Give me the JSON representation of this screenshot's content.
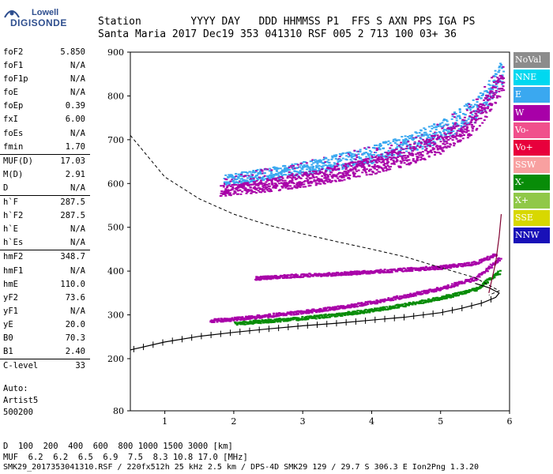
{
  "logo": {
    "line1": "Lowell",
    "line2": "DIGISONDE"
  },
  "header": {
    "labels": "Station        YYYY DAY   DDD HHMMSS P1  FFS S AXN PPS IGA PS",
    "values": "Santa Maria 2017 Dec19 353 041310 RSF 005 2 713 100 03+ 36"
  },
  "params": [
    {
      "name": "foF2",
      "value": "5.850"
    },
    {
      "name": "foF1",
      "value": "N/A"
    },
    {
      "name": "foF1p",
      "value": "N/A"
    },
    {
      "name": "foE",
      "value": "N/A"
    },
    {
      "name": "foEp",
      "value": "0.39"
    },
    {
      "name": "fxI",
      "value": "6.00"
    },
    {
      "name": "foEs",
      "value": "N/A"
    },
    {
      "name": "fmin",
      "value": "1.70"
    },
    {
      "name": "MUF(D)",
      "value": "17.03",
      "sep": true
    },
    {
      "name": "M(D)",
      "value": "2.91"
    },
    {
      "name": "D",
      "value": "N/A"
    },
    {
      "name": "h`F",
      "value": "287.5",
      "sep": true
    },
    {
      "name": "h`F2",
      "value": "287.5"
    },
    {
      "name": "h`E",
      "value": "N/A"
    },
    {
      "name": "h`Es",
      "value": "N/A"
    },
    {
      "name": "hmF2",
      "value": "348.7",
      "sep": true
    },
    {
      "name": "hmF1",
      "value": "N/A"
    },
    {
      "name": "hmE",
      "value": "110.0"
    },
    {
      "name": "yF2",
      "value": "73.6"
    },
    {
      "name": "yF1",
      "value": "N/A"
    },
    {
      "name": "yE",
      "value": "20.0"
    },
    {
      "name": "B0",
      "value": "70.3"
    },
    {
      "name": "B1",
      "value": "2.40"
    },
    {
      "name": "C-level",
      "value": "33",
      "sep": true
    }
  ],
  "auto": {
    "line1": "Auto:",
    "line2": "Artist5",
    "line3": "500200"
  },
  "muf_table": {
    "d_label": "D",
    "d_values": "  100  200  400  600  800 1000 1500 3000 [km]",
    "muf_label": "MUF",
    "muf_values": "  6.2  6.2  6.5  6.9  7.5  8.3 10.8 17.0 [MHz]"
  },
  "footer": "SMK29_2017353041310.RSF / 220fx512h 25 kHz 2.5 km / DPS-4D SMK29 129 / 29.7 S 306.3 E Ion2Png 1.3.20",
  "legend": [
    {
      "label": "NoVal",
      "color": "#8c8c8c"
    },
    {
      "label": "NNE",
      "color": "#00d8f0"
    },
    {
      "label": "E",
      "color": "#3aa8f0"
    },
    {
      "label": "W",
      "color": "#a800a8"
    },
    {
      "label": "Vo-",
      "color": "#f0508c"
    },
    {
      "label": "Vo+",
      "color": "#e8003c"
    },
    {
      "label": "SSW",
      "color": "#f8a0a0"
    },
    {
      "label": "X-",
      "color": "#088c08"
    },
    {
      "label": "X+",
      "color": "#90c848"
    },
    {
      "label": "SSE",
      "color": "#d8d800"
    },
    {
      "label": "NNW",
      "color": "#1810b8"
    }
  ],
  "chart_data": {
    "type": "scatter",
    "xlim": [
      0.5,
      6.0
    ],
    "ylim": [
      80,
      900
    ],
    "x_ticks": [
      1,
      2,
      3,
      4,
      5,
      6
    ],
    "y_ticks": [
      80,
      200,
      300,
      400,
      500,
      600,
      700,
      800,
      900
    ],
    "grid": false,
    "series": [
      {
        "name": "O-trace lower (F2)",
        "color": "#a800a8",
        "x": [
          1.65,
          2.0,
          2.5,
          3.0,
          3.5,
          4.0,
          4.5,
          5.0,
          5.5,
          5.85
        ],
        "y": [
          288,
          292,
          300,
          308,
          318,
          330,
          345,
          362,
          385,
          430
        ]
      },
      {
        "name": "O-trace upper",
        "color": "#a800a8",
        "x": [
          2.3,
          2.6,
          3.0,
          3.5,
          4.0,
          4.5,
          5.0,
          5.5,
          5.8
        ],
        "y": [
          385,
          388,
          392,
          395,
          400,
          405,
          410,
          420,
          440
        ]
      },
      {
        "name": "X-trace",
        "color": "#088c08",
        "x": [
          2.0,
          2.5,
          3.0,
          3.5,
          4.0,
          4.5,
          5.0,
          5.5,
          5.85
        ],
        "y": [
          282,
          288,
          294,
          302,
          312,
          325,
          340,
          360,
          400
        ]
      },
      {
        "name": "Multihop E",
        "color": "#3aa8f0",
        "x": [
          1.85,
          2.2,
          2.6,
          3.0,
          3.5,
          4.0,
          4.5,
          5.0,
          5.5,
          5.9
        ],
        "y": [
          610,
          617,
          625,
          635,
          650,
          668,
          690,
          720,
          770,
          860
        ]
      },
      {
        "name": "Multihop W",
        "color": "#a800a8",
        "x": [
          1.8,
          2.2,
          2.6,
          3.0,
          3.5,
          4.0,
          4.5,
          5.0,
          5.5,
          5.9
        ],
        "y": [
          585,
          592,
          600,
          610,
          625,
          642,
          665,
          695,
          745,
          840
        ]
      }
    ],
    "profile": {
      "x": [
        0.5,
        1.0,
        1.5,
        2.0,
        2.5,
        3.0,
        3.5,
        4.0,
        4.5,
        5.0,
        5.3,
        5.6,
        5.8,
        5.85,
        5.7,
        5.5
      ],
      "y": [
        220,
        238,
        251,
        260,
        268,
        275,
        281,
        288,
        295,
        305,
        315,
        327,
        340,
        350,
        362,
        372
      ]
    },
    "dashed": {
      "x": [
        0.5,
        1.0,
        1.5,
        2.0,
        2.5,
        3.0,
        3.5,
        4.0,
        4.5,
        5.0,
        5.5,
        5.85,
        5.7
      ],
      "y": [
        710,
        615,
        565,
        530,
        505,
        485,
        467,
        450,
        432,
        408,
        385,
        355,
        345
      ]
    },
    "muf_line": {
      "x": [
        5.7,
        5.8,
        5.85,
        5.88
      ],
      "y": [
        350,
        420,
        480,
        530
      ]
    }
  }
}
